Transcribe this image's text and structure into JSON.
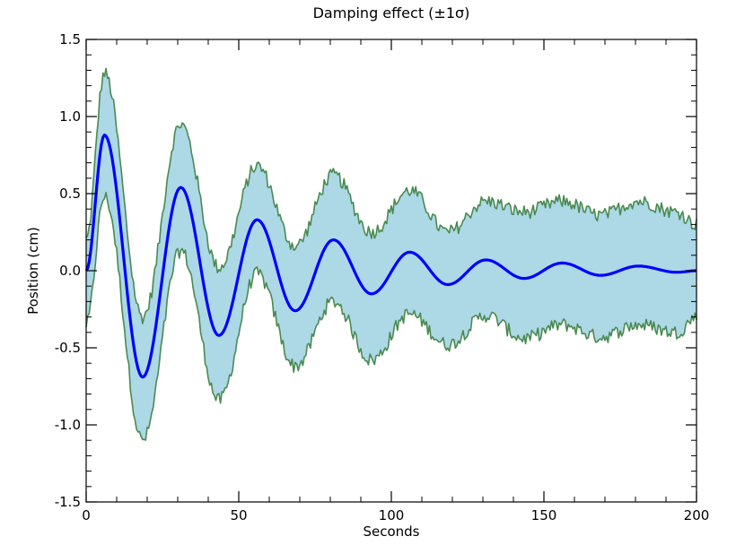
{
  "chart_data": {
    "type": "line",
    "title": "Damping effect (±1σ)",
    "xlabel": "Seconds",
    "ylabel": "Position (cm)",
    "xlim": [
      0,
      200
    ],
    "ylim": [
      -1.5,
      1.5
    ],
    "x_ticks": [
      0,
      50,
      100,
      150,
      200
    ],
    "x_tick_labels": [
      "0",
      "50",
      "100",
      "150",
      "200"
    ],
    "y_ticks": [
      -1.5,
      -1.0,
      -0.5,
      0.0,
      0.5,
      1.0,
      1.5
    ],
    "y_tick_labels": [
      "-1.5",
      "-1.0",
      "-0.5",
      "0.0",
      "0.5",
      "1.0",
      "1.5"
    ],
    "grid": false,
    "legend": "none",
    "colors": {
      "mean_line": "#0000ff",
      "band_fill": "#add8e6",
      "band_edge": "#4a8a50"
    },
    "series": [
      {
        "role": "mean",
        "x": [
          0,
          6,
          18.5,
          31,
          43.5,
          56,
          68.5,
          81,
          93.5,
          106,
          118.5,
          131,
          143.5,
          156,
          168.5,
          181,
          193.5,
          200
        ],
        "values": [
          0.0,
          0.88,
          -0.69,
          0.54,
          -0.42,
          0.33,
          -0.26,
          0.2,
          -0.15,
          0.12,
          -0.09,
          0.07,
          -0.05,
          0.05,
          -0.03,
          0.03,
          -0.01,
          0.0
        ]
      },
      {
        "role": "upper (+1σ)",
        "x": [
          0,
          6,
          18.5,
          31,
          43.5,
          56,
          68.5,
          81,
          93.5,
          106,
          118.5,
          131,
          143.5,
          156,
          168.5,
          181,
          193.5,
          200
        ],
        "values": [
          0.2,
          1.28,
          -0.3,
          0.95,
          0.02,
          0.68,
          0.16,
          0.62,
          0.25,
          0.52,
          0.25,
          0.45,
          0.38,
          0.45,
          0.36,
          0.45,
          0.38,
          0.3
        ]
      },
      {
        "role": "lower (−1σ)",
        "x": [
          0,
          6,
          18.5,
          31,
          43.5,
          56,
          68.5,
          81,
          93.5,
          106,
          118.5,
          131,
          143.5,
          156,
          168.5,
          181,
          193.5,
          200
        ],
        "values": [
          -0.35,
          0.48,
          -1.1,
          0.13,
          -0.84,
          -0.02,
          -0.62,
          -0.2,
          -0.58,
          -0.28,
          -0.48,
          -0.29,
          -0.44,
          -0.35,
          -0.43,
          -0.35,
          -0.4,
          -0.3
        ]
      }
    ]
  }
}
